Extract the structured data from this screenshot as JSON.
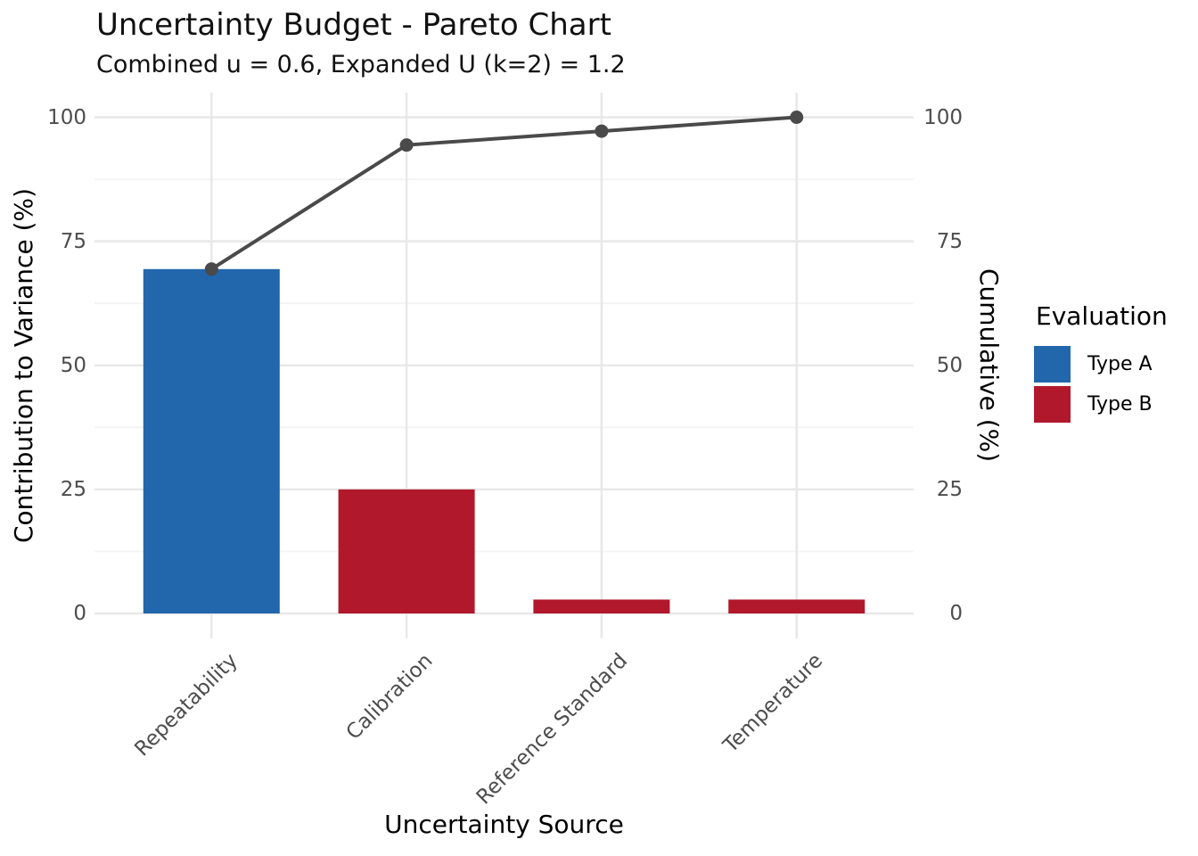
{
  "title": "Uncertainty Budget - Pareto Chart",
  "subtitle": "Combined u = 0.6, Expanded U (k=2) = 1.2",
  "axes": {
    "left": {
      "title": "Contribution to Variance (%)",
      "ticks": [
        0,
        25,
        50,
        75,
        100
      ]
    },
    "right": {
      "title": "Cumulative (%)",
      "ticks": [
        0,
        25,
        50,
        75,
        100
      ]
    },
    "bottom": {
      "title": "Uncertainty Source"
    }
  },
  "legend": {
    "title": "Evaluation",
    "position": "right",
    "items": [
      {
        "label": "Type A",
        "color": "#2266AC"
      },
      {
        "label": "Type B",
        "color": "#B2182B"
      }
    ]
  },
  "colors": {
    "type_a_bar": "#2266AC",
    "type_b_bar": "#B2182B",
    "cumulative_line": "#4A4A4A",
    "grid_major": "#E8E8E8",
    "grid_minor": "#F4F4F4",
    "tick_text": "#4D4D4D",
    "background": "#FFFFFF"
  },
  "chart_data": {
    "type": "bar",
    "subtype": "pareto (bars + cumulative line, dual y-axis)",
    "categories": [
      "Repeatability",
      "Calibration",
      "Reference Standard",
      "Temperature"
    ],
    "series": [
      {
        "name": "Contribution to Variance (%)",
        "type": "bar",
        "values": [
          69.4,
          25.0,
          2.8,
          2.8
        ],
        "evaluation": [
          "Type A",
          "Type B",
          "Type B",
          "Type B"
        ]
      },
      {
        "name": "Cumulative (%)",
        "type": "line",
        "values": [
          69.4,
          94.4,
          97.2,
          100.0
        ]
      }
    ],
    "title": "Uncertainty Budget - Pareto Chart",
    "subtitle": "Combined u = 0.6, Expanded U (k=2) = 1.2",
    "xlabel": "Uncertainty Source",
    "ylabel_left": "Contribution to Variance (%)",
    "ylabel_right": "Cumulative (%)",
    "ylim": [
      0,
      100
    ],
    "y_major_ticks": [
      0,
      25,
      50,
      75,
      100
    ],
    "y_minor_gridlines": [
      12.5,
      37.5,
      62.5,
      87.5
    ],
    "grid": "on",
    "legend_position": "right"
  }
}
